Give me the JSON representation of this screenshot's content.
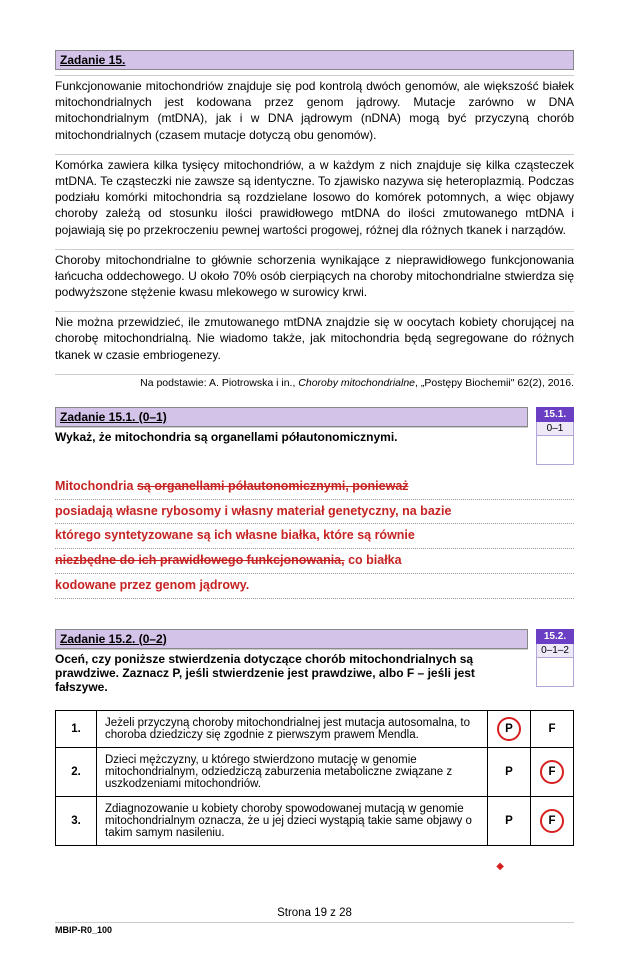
{
  "task15": {
    "header": "Zadanie 15.",
    "para1": "Funkcjonowanie mitochondriów znajduje się pod kontrolą dwóch genomów, ale większość białek mitochondrialnych jest kodowana przez genom jądrowy. Mutacje zarówno w DNA mitochondrialnym (mtDNA), jak i w DNA jądrowym (nDNA) mogą być przyczyną chorób mitochondrialnych (czasem mutacje dotyczą obu genomów).",
    "para2": "Komórka zawiera kilka tysięcy mitochondriów, a w każdym z nich znajduje się kilka cząsteczek mtDNA. Te cząsteczki nie zawsze są identyczne. To zjawisko nazywa się heteroplazmią. Podczas podziału komórki mitochondria są rozdzielane losowo do komórek potomnych, a więc objawy choroby zależą od stosunku ilości prawidłowego mtDNA do ilości zmutowanego mtDNA i pojawiają się po przekroczeniu pewnej wartości progowej, różnej dla różnych tkanek i narządów.",
    "para3": "Choroby mitochondrialne to głównie schorzenia wynikające z nieprawidłowego funkcjonowania łańcucha oddechowego. U około 70% osób cierpiących na choroby mitochondrialne stwierdza się podwyższone stężenie kwasu mlekowego w surowicy krwi.",
    "para4": "Nie można przewidzieć, ile zmutowanego mtDNA znajdzie się w oocytach kobiety chorującej na chorobę mitochondrialną. Nie wiadomo także, jak mitochondria będą segregowane do różnych tkanek w czasie embriogenezy.",
    "source_prefix": "Na podstawie: A. Piotrowska i in., ",
    "source_italic": "Choroby mitochondrialne",
    "source_suffix": ", „Postępy Biochemii\" 62(2), 2016."
  },
  "task151": {
    "header": "Zadanie 15.1. (0–1)",
    "question": "Wykaż, że mitochondria są organellami półautonomicznymi.",
    "score_label": "15.1.",
    "score_range": "0–1",
    "ans_l1_a": "Mitochondria ",
    "ans_l1_b": "są organellami półautonomicznymi, ponieważ",
    "ans_l2": "posiadają własne rybosomy i własny materiał genetyczny, na bazie",
    "ans_l3": "którego syntetyzowane są ich własne białka, które są równie",
    "ans_l4_a": "niezbędne do ich prawidłowego funkcjonowania,",
    "ans_l4_b": " co białka",
    "ans_l5": "kodowane przez genom jądrowy."
  },
  "task152": {
    "header": "Zadanie 15.2. (0–2)",
    "question": "Oceń, czy poniższe stwierdzenia dotyczące chorób mitochondrialnych są prawdziwe. Zaznacz P, jeśli stwierdzenie jest prawdziwe, albo F – jeśli jest fałszywe.",
    "score_label": "15.2.",
    "score_range": "0–1–2",
    "rows": [
      {
        "n": "1.",
        "txt": "Jeżeli przyczyną choroby mitochondrialnej jest mutacja autosomalna, to choroba dziedziczy się zgodnie z pierwszym prawem Mendla.",
        "circled": "P"
      },
      {
        "n": "2.",
        "txt": "Dzieci mężczyzny, u którego stwierdzono mutację w genomie mitochondrialnym, odziedziczą zaburzenia metaboliczne związane z uszkodzeniami mitochondriów.",
        "circled": "F"
      },
      {
        "n": "3.",
        "txt": "Zdiagnozowanie u kobiety choroby spowodowanej mutacją w genomie mitochondrialnym oznacza, że u jej dzieci wystąpią takie same objawy o takim samym nasileniu.",
        "circled": "F"
      }
    ],
    "P": "P",
    "F": "F"
  },
  "footer": {
    "page": "Strona 19 z 28",
    "code": "MBIP-R0_100",
    "mark": "◆"
  }
}
